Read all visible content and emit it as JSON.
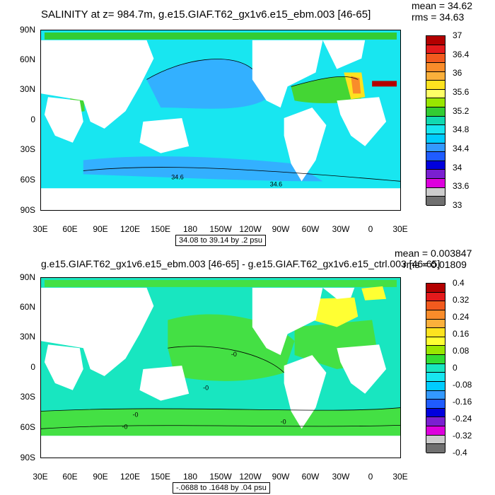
{
  "chart_data": [
    {
      "type": "heatmap",
      "title": "SALINITY at z= 984.7m, g.e15.GIAF.T62_gx1v6.e15_ebm.003 [46-65]",
      "stats": {
        "mean": "mean = 34.62",
        "rms": "rms = 34.63"
      },
      "y_ticks": [
        "90N",
        "60N",
        "30N",
        "0",
        "30S",
        "60S",
        "90S"
      ],
      "x_ticks": [
        "30E",
        "60E",
        "90E",
        "120E",
        "150E",
        "180",
        "150W",
        "120W",
        "90W",
        "60W",
        "30W",
        "0",
        "30E"
      ],
      "colorbar": {
        "labels": [
          "37",
          "36.4",
          "36",
          "35.6",
          "35.2",
          "34.8",
          "34.4",
          "34",
          "33.6",
          "33"
        ],
        "colors": [
          "#b30000",
          "#e41a1c",
          "#f25a1e",
          "#f98c2a",
          "#fbb03b",
          "#fde31f",
          "#ffff66",
          "#99e600",
          "#33cc33",
          "#11d9b0",
          "#18e6f0",
          "#00ccff",
          "#3399ff",
          "#1f5cff",
          "#0000dd",
          "#7a1fd1",
          "#dd00dd",
          "#cccccc",
          "#707070"
        ]
      },
      "contour_labels": [
        "34.6",
        "34.6"
      ],
      "contour_info": "34.08 to 39.14 by .2 psu"
    },
    {
      "type": "heatmap",
      "title": "g.e15.GIAF.T62_gx1v6.e15_ebm.003 [46-65] - g.e15.GIAF.T62_gx1v6.e15_ctrl.003 [46-65]",
      "stats": {
        "mean": "mean = 0.003847",
        "rms": "rms = 0.01809"
      },
      "y_ticks": [
        "90N",
        "60N",
        "30N",
        "0",
        "30S",
        "60S",
        "90S"
      ],
      "x_ticks": [
        "30E",
        "60E",
        "90E",
        "120E",
        "150E",
        "180",
        "150W",
        "120W",
        "90W",
        "60W",
        "30W",
        "0",
        "30E"
      ],
      "colorbar": {
        "labels": [
          "0.4",
          "0.32",
          "0.24",
          "0.16",
          "0.08",
          "0",
          "-0.08",
          "-0.16",
          "-0.24",
          "-0.32",
          "-0.4"
        ],
        "colors": [
          "#b30000",
          "#e41a1c",
          "#f25a1e",
          "#f98c2a",
          "#fbb03b",
          "#fde31f",
          "#ffff33",
          "#99e600",
          "#33dd33",
          "#18e6c0",
          "#18e6f0",
          "#00ccff",
          "#3399ff",
          "#1f5cff",
          "#0000dd",
          "#7a1fd1",
          "#dd00dd",
          "#cccccc",
          "#707070"
        ]
      },
      "contour_labels": [
        "-0",
        "-0",
        "-0",
        "-0",
        "-0"
      ],
      "contour_info": "-.0688 to .1648 by .04 psu"
    }
  ]
}
